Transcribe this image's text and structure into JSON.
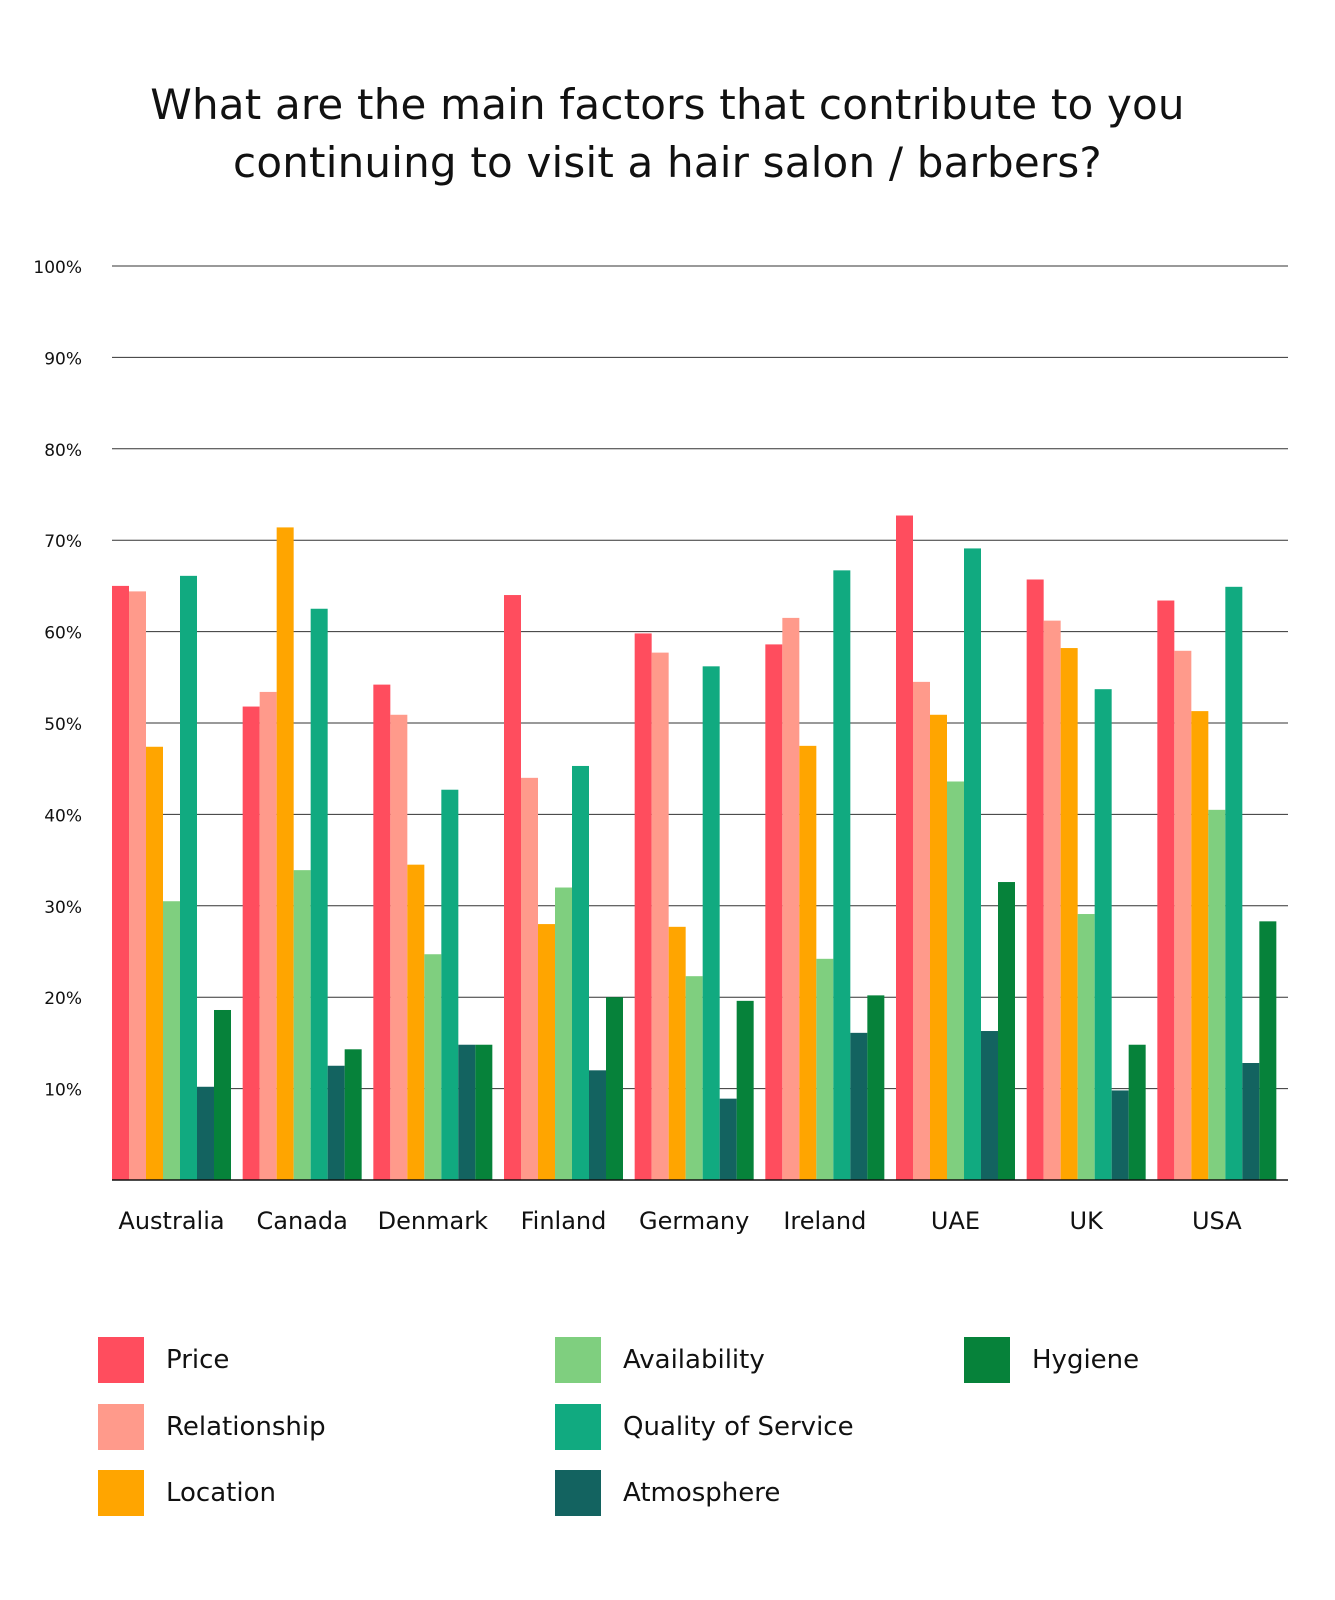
{
  "title": {
    "line1": "What are the main factors that contribute to you",
    "line2": "continuing to visit a hair salon / barbers?"
  },
  "chart_data": {
    "type": "bar",
    "categories": [
      "Australia",
      "Canada",
      "Denmark",
      "Finland",
      "Germany",
      "Ireland",
      "UAE",
      "UK",
      "USA"
    ],
    "ylim": [
      0,
      100
    ],
    "yticks": [
      "10%",
      "20%",
      "30%",
      "40%",
      "50%",
      "60%",
      "70%",
      "80%",
      "90%",
      "100%"
    ],
    "grid": true,
    "legend_position": "bottom",
    "series": [
      {
        "name": "Price",
        "color": "#FF4D5E",
        "values": [
          65,
          51.8,
          54.2,
          64,
          59.8,
          58.6,
          72.7,
          65.7,
          63.4
        ]
      },
      {
        "name": "Relationship",
        "color": "#FF9A8B",
        "values": [
          64.4,
          53.4,
          50.9,
          44,
          57.7,
          61.5,
          54.5,
          61.2,
          57.9
        ]
      },
      {
        "name": "Location",
        "color": "#FFA500",
        "values": [
          47.4,
          71.4,
          34.5,
          28,
          27.7,
          47.5,
          50.9,
          58.2,
          51.3
        ]
      },
      {
        "name": "Availability",
        "color": "#7FCF7F",
        "values": [
          30.5,
          33.9,
          24.7,
          32,
          22.3,
          24.2,
          43.6,
          29.1,
          40.5
        ]
      },
      {
        "name": "Quality of Service",
        "color": "#11AA80",
        "values": [
          66.1,
          62.5,
          42.7,
          45.3,
          56.2,
          66.7,
          69.1,
          53.7,
          64.9
        ]
      },
      {
        "name": "Atmosphere",
        "color": "#136360",
        "values": [
          10.2,
          12.5,
          14.8,
          12,
          8.9,
          16.1,
          16.3,
          9.8,
          12.8
        ]
      },
      {
        "name": "Hygiene",
        "color": "#06823A",
        "values": [
          18.6,
          14.3,
          14.8,
          20,
          19.6,
          20.2,
          32.6,
          14.8,
          28.3
        ]
      }
    ]
  }
}
